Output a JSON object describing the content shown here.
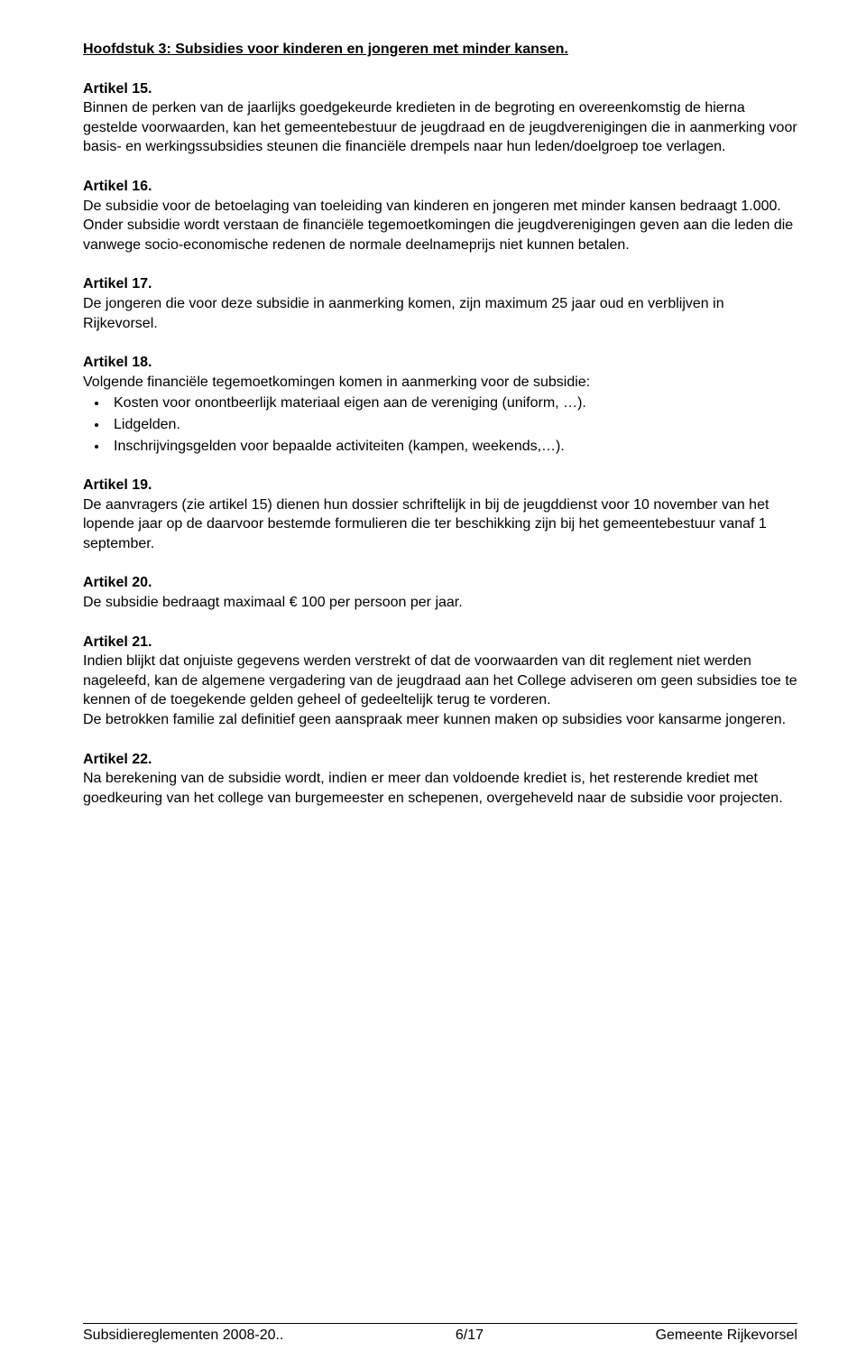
{
  "chapter_title": "Hoofdstuk 3: Subsidies voor kinderen en jongeren met minder kansen.",
  "articles": {
    "a15": {
      "heading": "Artikel 15.",
      "body": "Binnen de perken van de jaarlijks goedgekeurde kredieten in de begroting en overeenkomstig de hierna gestelde voorwaarden, kan het gemeentebestuur de jeugdraad en de jeugdverenigingen die in aanmerking voor basis- en werkingssubsidies steunen die financiële drempels naar hun leden/doelgroep toe verlagen."
    },
    "a16": {
      "heading": "Artikel 16.",
      "body1": "De subsidie voor de betoelaging van toeleiding van kinderen en jongeren met minder kansen bedraagt 1.000.",
      "body2": "Onder subsidie wordt verstaan de financiële tegemoetkomingen die jeugdverenigingen geven aan die leden die vanwege socio-economische redenen de normale deelnameprijs niet kunnen betalen."
    },
    "a17": {
      "heading": "Artikel 17.",
      "body": "De jongeren die voor deze subsidie in aanmerking komen, zijn maximum 25 jaar oud en verblijven in Rijkevorsel."
    },
    "a18": {
      "heading": "Artikel 18.",
      "intro": "Volgende financiële tegemoetkomingen komen in aanmerking voor de subsidie:",
      "items": [
        "Kosten voor onontbeerlijk materiaal eigen aan de vereniging (uniform, …).",
        "Lidgelden.",
        "Inschrijvingsgelden voor bepaalde activiteiten (kampen, weekends,…)."
      ]
    },
    "a19": {
      "heading": "Artikel 19.",
      "body": "De aanvragers (zie artikel 15) dienen hun dossier schriftelijk in bij de jeugddienst voor 10 november van het lopende jaar op de daarvoor bestemde formulieren die ter beschikking zijn bij het gemeentebestuur vanaf 1 september."
    },
    "a20": {
      "heading": "Artikel 20.",
      "body": "De subsidie bedraagt maximaal € 100 per persoon per jaar."
    },
    "a21": {
      "heading": "Artikel 21.",
      "body1": "Indien blijkt dat onjuiste gegevens werden verstrekt of dat de voorwaarden van dit reglement niet werden nageleefd, kan de algemene vergadering van de jeugdraad aan het College adviseren om geen subsidies toe te kennen of de toegekende gelden geheel of gedeeltelijk terug te vorderen.",
      "body2": "De betrokken familie zal definitief geen aanspraak meer kunnen maken op subsidies voor kansarme jongeren."
    },
    "a22": {
      "heading": "Artikel 22.",
      "body": "Na berekening van de subsidie wordt, indien er meer dan voldoende krediet is, het resterende krediet met goedkeuring van het college van burgemeester en schepenen, overgeheveld naar de subsidie voor projecten."
    }
  },
  "footer": {
    "left": "Subsidiereglementen 2008-20..",
    "center": "6/17",
    "right": "Gemeente Rijkevorsel"
  }
}
